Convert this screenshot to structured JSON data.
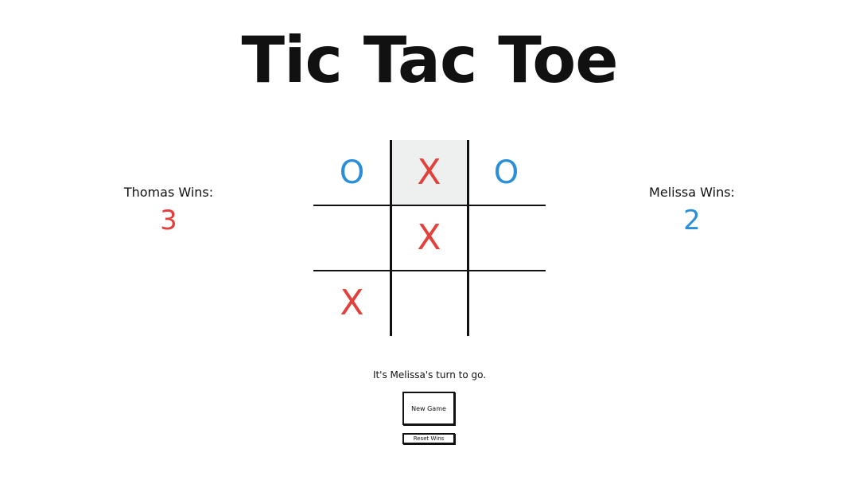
{
  "title": "Tic Tac Toe",
  "players": {
    "left": {
      "label": "Thomas Wins:",
      "wins": "3",
      "color": "#e2403a"
    },
    "right": {
      "label": "Melissa Wins:",
      "wins": "2",
      "color": "#2a8fd6"
    }
  },
  "board": {
    "cells": [
      "O",
      "X",
      "O",
      "",
      "X",
      "",
      "X",
      "",
      ""
    ],
    "highlighted_cell": 1
  },
  "colors": {
    "x": "#e2403a",
    "o": "#2a8fd6",
    "highlight": "#eef0f0"
  },
  "status": "It's Melissa's turn to go.",
  "buttons": {
    "new_game": "New Game",
    "reset_wins": "Reset Wins"
  }
}
